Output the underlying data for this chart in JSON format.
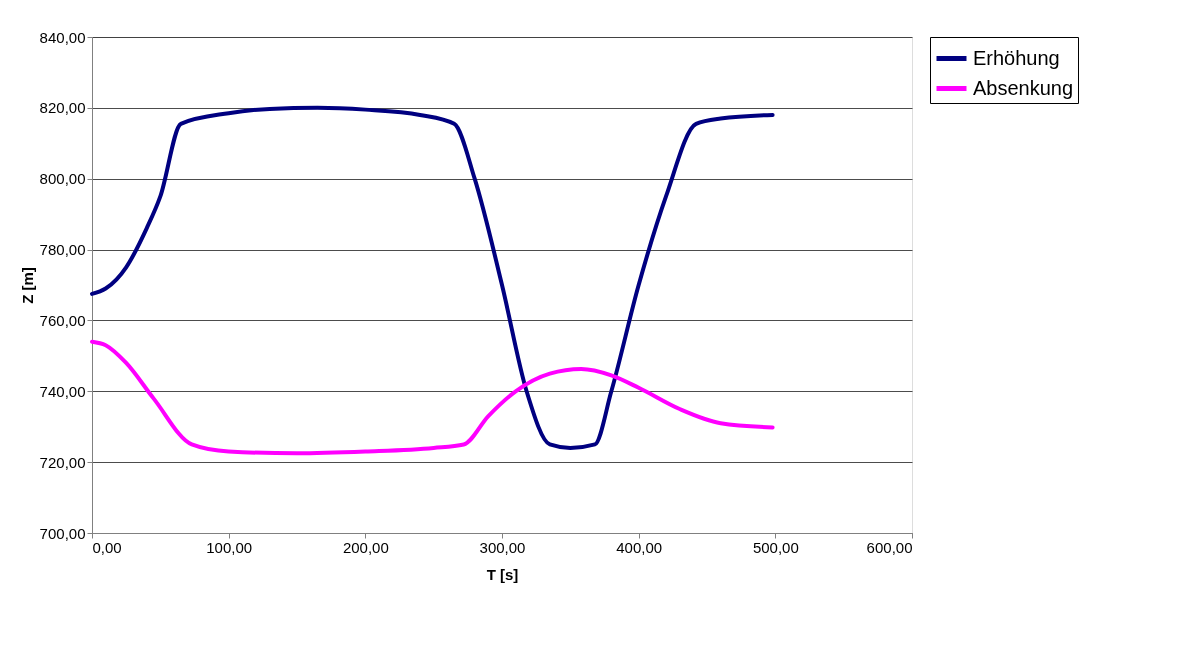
{
  "chart_data": {
    "type": "line",
    "xlabel": "T [s]",
    "ylabel": "Z [m]",
    "xlim": [
      0,
      600
    ],
    "ylim": [
      700,
      840
    ],
    "xticks": [
      {
        "value": 0,
        "label": "0,00"
      },
      {
        "value": 100,
        "label": "100,00"
      },
      {
        "value": 200,
        "label": "200,00"
      },
      {
        "value": 300,
        "label": "300,00"
      },
      {
        "value": 400,
        "label": "400,00"
      },
      {
        "value": 500,
        "label": "500,00"
      },
      {
        "value": 600,
        "label": "600,00"
      }
    ],
    "yticks": [
      {
        "value": 700,
        "label": "700,00"
      },
      {
        "value": 720,
        "label": "720,00"
      },
      {
        "value": 740,
        "label": "740,00"
      },
      {
        "value": 760,
        "label": "760,00"
      },
      {
        "value": 780,
        "label": "780,00"
      },
      {
        "value": 800,
        "label": "800,00"
      },
      {
        "value": 820,
        "label": "820,00"
      },
      {
        "value": 840,
        "label": "840,00"
      }
    ],
    "grid": "y",
    "legend": "right",
    "marker": "none",
    "line_style": "solid",
    "series": [
      {
        "name": "Erhöhung",
        "color": "#000080",
        "x": [
          0,
          10,
          25,
          40,
          50,
          65,
          100,
          130,
          165,
          200,
          240,
          265,
          280,
          300,
          318,
          335,
          350,
          368,
          380,
          400,
          420,
          442,
          460,
          498
        ],
        "values": [
          767.5,
          769,
          775,
          786,
          795,
          815.5,
          818.5,
          819.7,
          820,
          819.5,
          818,
          815.5,
          800,
          770,
          740,
          725,
          724,
          725,
          740,
          770,
          795,
          815.5,
          817,
          818
        ]
      },
      {
        "name": "Absenkung",
        "color": "#ff00ff",
        "x": [
          0,
          10,
          25,
          45,
          73,
          100,
          150,
          200,
          250,
          272,
          290,
          310,
          335,
          358,
          380,
          400,
          430,
          460,
          498
        ],
        "values": [
          754,
          753,
          748,
          738,
          725,
          723,
          722.5,
          723,
          724,
          725,
          733,
          740,
          745,
          746.3,
          744.5,
          741,
          735,
          731,
          729.8
        ]
      }
    ]
  }
}
